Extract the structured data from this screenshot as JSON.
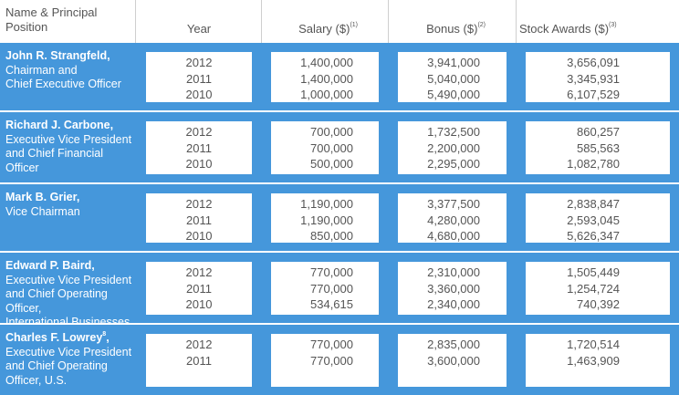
{
  "header": {
    "name": "Name & Principal Position",
    "year": "Year",
    "salary": "Salary ($)",
    "salary_note": "(1)",
    "bonus": "Bonus ($)",
    "bonus_note": "(2)",
    "stock": "Stock Awards ($)",
    "stock_note": "(3)"
  },
  "rows": [
    {
      "name": "John R. Strangfeld,",
      "title_lines": [
        "Chairman and",
        "Chief Executive Officer"
      ],
      "years": [
        "2012",
        "2011",
        "2010"
      ],
      "salary": [
        "1,400,000",
        "1,400,000",
        "1,000,000"
      ],
      "bonus": [
        "3,941,000",
        "5,040,000",
        "5,490,000"
      ],
      "stock": [
        "3,656,091",
        "3,345,931",
        "6,107,529"
      ]
    },
    {
      "name": "Richard J. Carbone,",
      "title_lines": [
        "Executive Vice President",
        "and Chief Financial Officer"
      ],
      "years": [
        "2012",
        "2011",
        "2010"
      ],
      "salary": [
        "700,000",
        "700,000",
        "500,000"
      ],
      "bonus": [
        "1,732,500",
        "2,200,000",
        "2,295,000"
      ],
      "stock": [
        "860,257",
        "585,563",
        "1,082,780"
      ]
    },
    {
      "name": "Mark B. Grier,",
      "title_lines": [
        "Vice Chairman"
      ],
      "years": [
        "2012",
        "2011",
        "2010"
      ],
      "salary": [
        "1,190,000",
        "1,190,000",
        "850,000"
      ],
      "bonus": [
        "3,377,500",
        "4,280,000",
        "4,680,000"
      ],
      "stock": [
        "2,838,847",
        "2,593,045",
        "5,626,347"
      ]
    },
    {
      "name": "Edward P. Baird,",
      "title_lines": [
        "Executive Vice President",
        "and Chief Operating Officer,",
        "International Businesses"
      ],
      "years": [
        "2012",
        "2011",
        "2010"
      ],
      "salary": [
        "770,000",
        "770,000",
        "534,615"
      ],
      "bonus": [
        "2,310,000",
        "3,360,000",
        "2,340,000"
      ],
      "stock": [
        "1,505,449",
        "1,254,724",
        "740,392"
      ]
    },
    {
      "name": "Charles F. Lowrey",
      "name_note": "8",
      "name_suffix": ",",
      "title_lines": [
        "Executive Vice President",
        "and Chief Operating",
        "Officer, U.S."
      ],
      "years": [
        "2012",
        "2011"
      ],
      "salary": [
        "770,000",
        "770,000"
      ],
      "bonus": [
        "2,835,000",
        "3,600,000"
      ],
      "stock": [
        "1,720,514",
        "1,463,909"
      ]
    }
  ]
}
